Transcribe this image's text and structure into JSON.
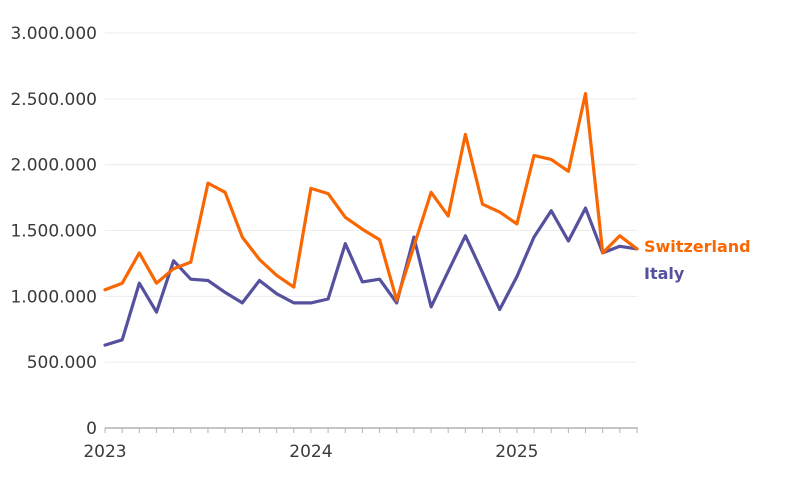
{
  "colors": {
    "switzerland": "#F96702",
    "italy": "#55519E",
    "gridline": "#ececec",
    "axis": "#b3b3b3",
    "tick_label": "#3a3a3a"
  },
  "chart_data": {
    "type": "line",
    "x": [
      "2023-01",
      "2023-02",
      "2023-03",
      "2023-04",
      "2023-05",
      "2023-06",
      "2023-07",
      "2023-08",
      "2023-09",
      "2023-10",
      "2023-11",
      "2023-12",
      "2024-01",
      "2024-02",
      "2024-03",
      "2024-04",
      "2024-05",
      "2024-06",
      "2024-07",
      "2024-08",
      "2024-09",
      "2024-10",
      "2024-11",
      "2024-12",
      "2025-01",
      "2025-02",
      "2025-03",
      "2025-04",
      "2025-05",
      "2025-06",
      "2025-07",
      "2025-08"
    ],
    "series": [
      {
        "name": "Switzerland",
        "color": "#F96702",
        "values": [
          1050000,
          1100000,
          1330000,
          1100000,
          1210000,
          1260000,
          1860000,
          1790000,
          1450000,
          1280000,
          1160000,
          1070000,
          1820000,
          1780000,
          1600000,
          1510000,
          1430000,
          970000,
          1380000,
          1790000,
          1610000,
          2230000,
          1700000,
          1640000,
          1550000,
          2070000,
          2040000,
          1950000,
          2540000,
          1330000,
          1460000,
          1360000
        ]
      },
      {
        "name": "Italy",
        "color": "#55519E",
        "values": [
          630000,
          670000,
          1100000,
          880000,
          1270000,
          1130000,
          1120000,
          1030000,
          950000,
          1120000,
          1020000,
          950000,
          950000,
          980000,
          1400000,
          1110000,
          1130000,
          950000,
          1450000,
          920000,
          1190000,
          1460000,
          1180000,
          900000,
          1150000,
          1450000,
          1650000,
          1420000,
          1670000,
          1330000,
          1380000,
          1360000
        ]
      }
    ],
    "title": "",
    "xlabel": "",
    "ylabel": "",
    "ylim": [
      0,
      3000000
    ],
    "y_tick_step": 500000,
    "y_tick_labels": [
      "0",
      "500.000",
      "1.000.000",
      "1.500.000",
      "2.000.000",
      "2.500.000",
      "3.000.000"
    ],
    "x_tick_years": [
      {
        "label": "2023",
        "month_index": 0
      },
      {
        "label": "2024",
        "month_index": 12
      },
      {
        "label": "2025",
        "month_index": 24
      }
    ],
    "grid": "horizontal",
    "legend_position": "right-of-line-end"
  },
  "legend": {
    "switzerland_label": "Switzerland",
    "italy_label": "Italy"
  }
}
